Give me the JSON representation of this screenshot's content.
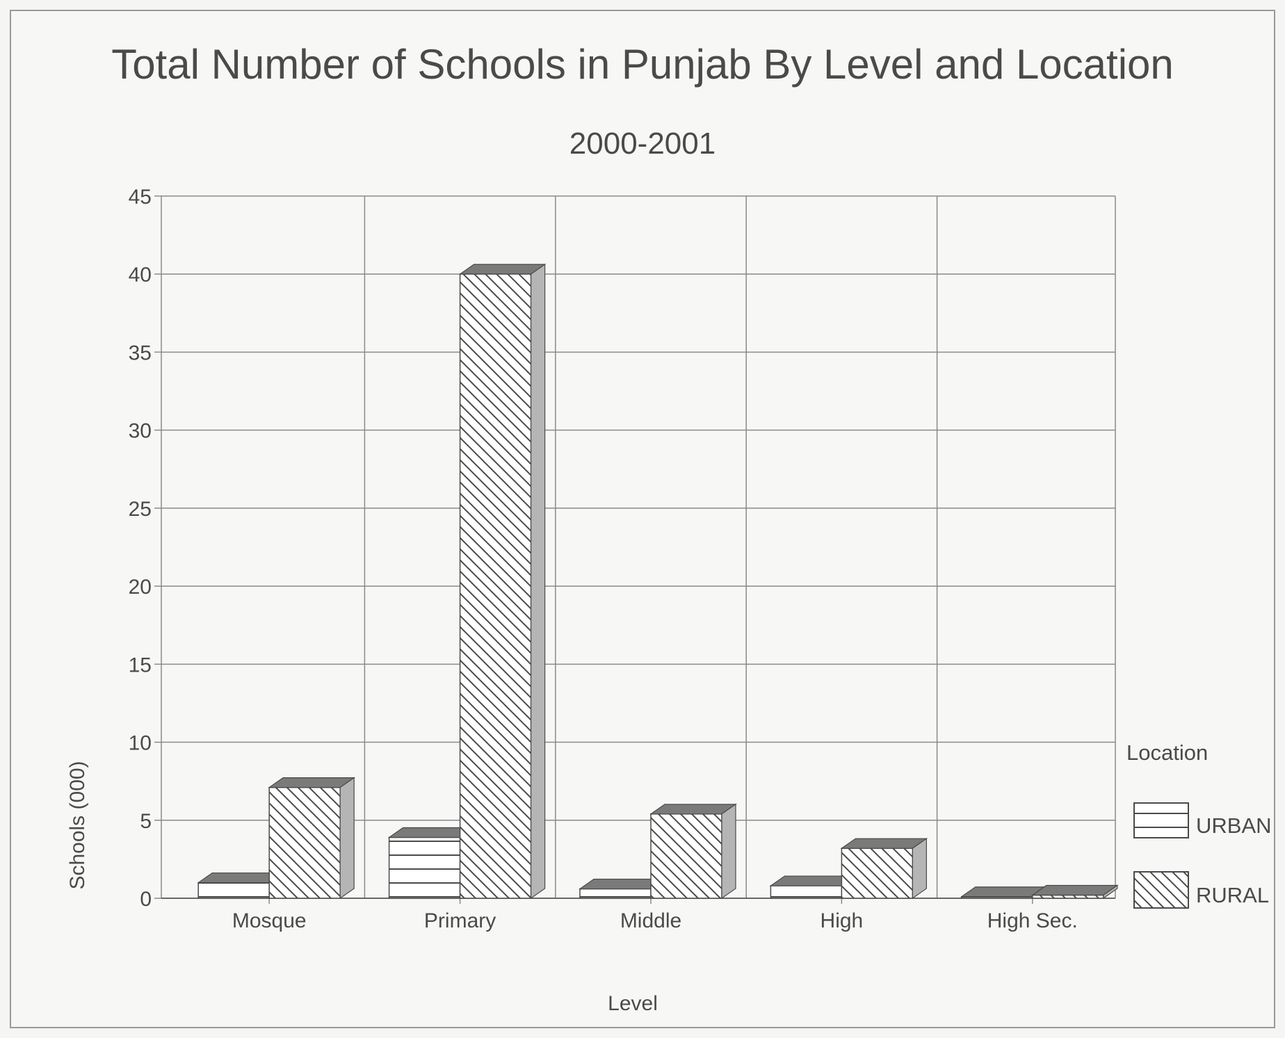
{
  "chart_data": {
    "type": "bar",
    "title": "Total Number of Schools in Punjab By Level and Location",
    "subtitle": "2000-2001",
    "xlabel": "Level",
    "ylabel": "Schools (000)",
    "categories": [
      "Mosque",
      "Primary",
      "Middle",
      "High",
      "High Sec."
    ],
    "series": [
      {
        "name": "URBAN",
        "values": [
          1.0,
          3.9,
          0.6,
          0.8,
          0.1
        ],
        "pattern": "horizontal-lines"
      },
      {
        "name": "RURAL",
        "values": [
          7.1,
          40.0,
          5.4,
          3.2,
          0.2
        ],
        "pattern": "diagonal-hatch"
      }
    ],
    "ylim": [
      0,
      45
    ],
    "yticks": [
      0,
      5,
      10,
      15,
      20,
      25,
      30,
      35,
      40,
      45
    ],
    "grid": true,
    "three_d": true,
    "legend": {
      "title": "Location",
      "position": "right"
    }
  },
  "colors": {
    "ink": "#4a4a4a",
    "grid": "#8a8a8a",
    "bar_front": "#ffffff",
    "bar_side": "#b5b5b5",
    "bar_top": "#7a7a7a",
    "background": "#f7f7f5"
  }
}
